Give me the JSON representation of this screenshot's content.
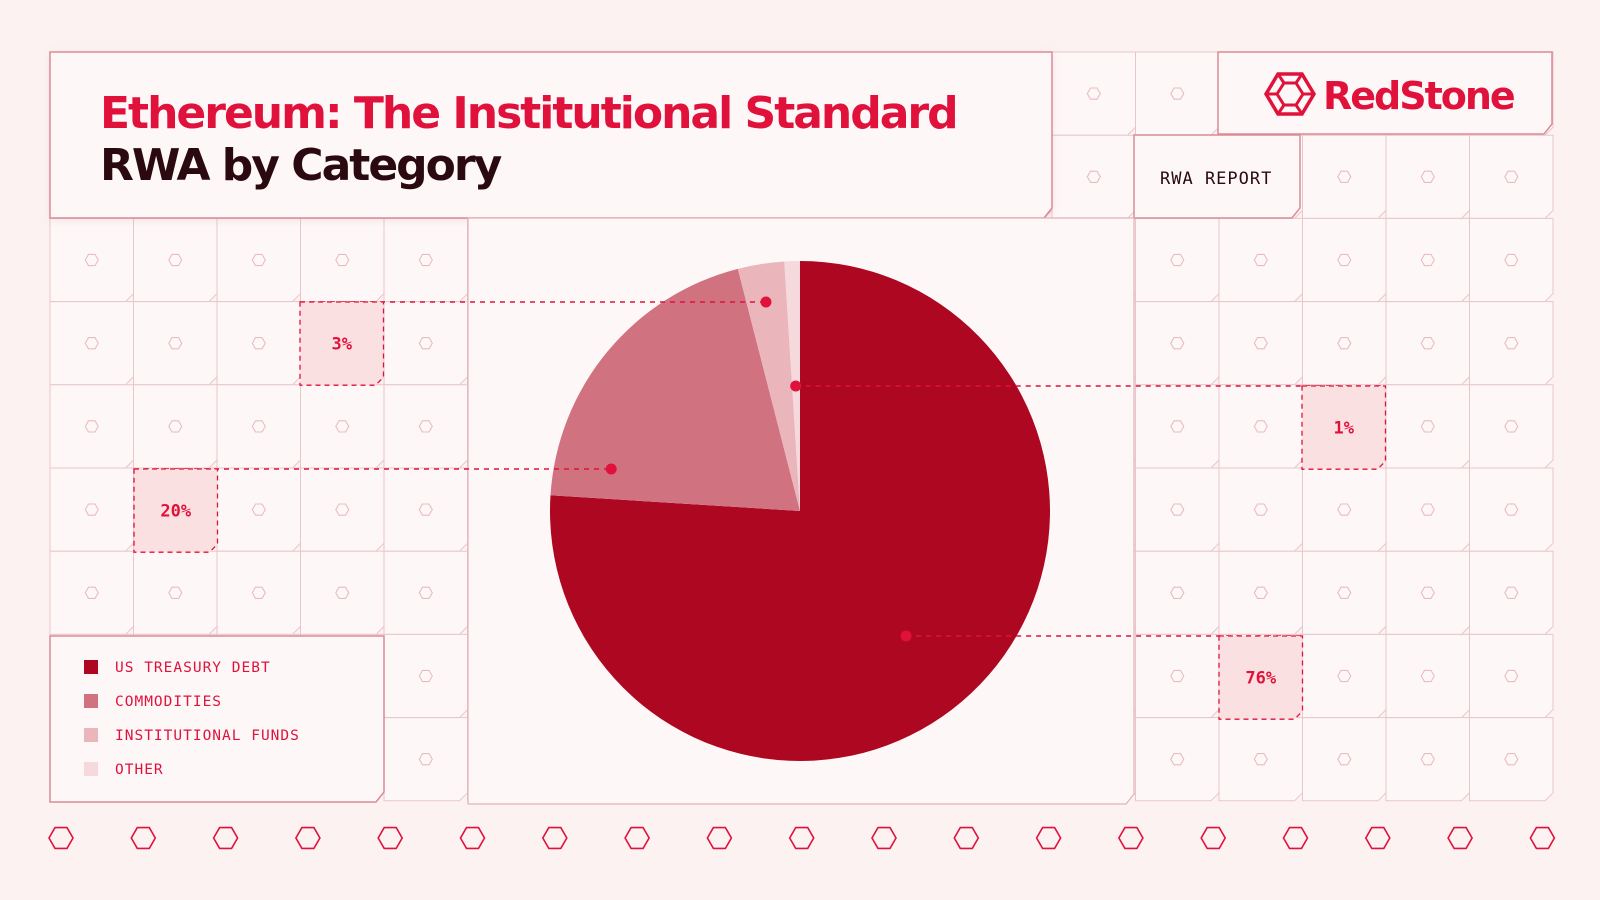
{
  "header": {
    "title": "Ethereum: The Institutional Standard",
    "subtitle": "RWA by Category"
  },
  "brand": {
    "name": "RedStone",
    "report_label": "RWA REPORT"
  },
  "colors": {
    "background": "#fcf2f2",
    "accent": "#e0123c",
    "title_dark": "#2a0a10",
    "grid_line": "#eac5ca"
  },
  "chart_data": {
    "type": "pie",
    "title": "RWA by Category",
    "slices": [
      {
        "label": "US TREASURY DEBT",
        "value": 76,
        "display": "76%",
        "color": "#ad0722"
      },
      {
        "label": "COMMODITIES",
        "value": 20,
        "display": "20%",
        "color": "#d07280"
      },
      {
        "label": "INSTITUTIONAL FUNDS",
        "value": 3,
        "display": "3%",
        "color": "#ebb5bc"
      },
      {
        "label": "OTHER",
        "value": 1,
        "display": "1%",
        "color": "#f6d9dc"
      }
    ],
    "legend_position": "bottom-left"
  }
}
